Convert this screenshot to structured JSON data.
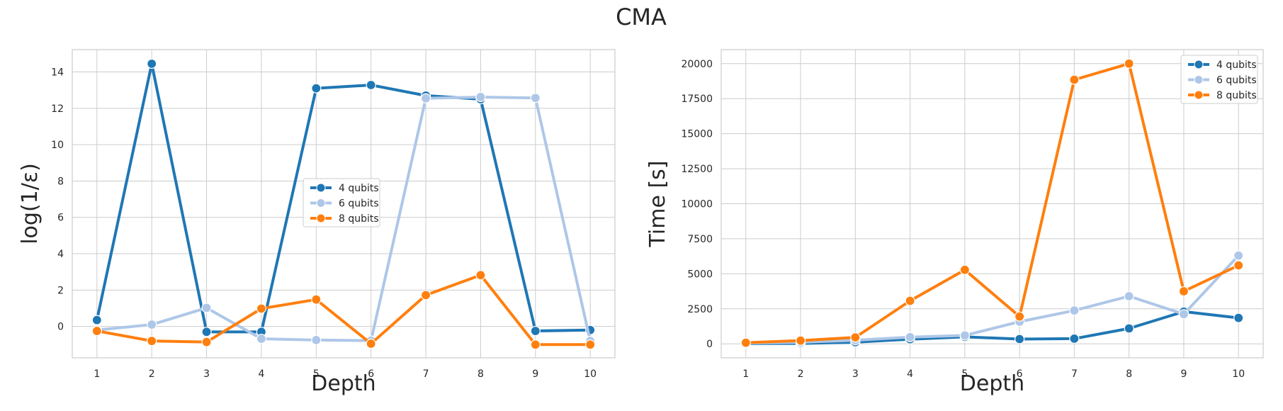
{
  "figure": {
    "suptitle": "CMA"
  },
  "chart_data": [
    {
      "type": "line",
      "xlabel": "Depth",
      "ylabel": "log(1/ε)",
      "x": [
        1,
        2,
        3,
        4,
        5,
        6,
        7,
        8,
        9,
        10
      ],
      "xlim": [
        0.55,
        10.45
      ],
      "ylim": [
        -1.73,
        15.23
      ],
      "yticks": [
        0,
        2,
        4,
        6,
        8,
        10,
        12,
        14
      ],
      "grid": true,
      "legend_position": "center",
      "series": [
        {
          "name": "4 qubits",
          "color": "#1f77b4",
          "values": [
            0.35,
            14.45,
            -0.3,
            -0.3,
            13.1,
            13.28,
            12.7,
            12.5,
            -0.25,
            -0.2
          ]
        },
        {
          "name": "6 qubits",
          "color": "#aec7e8",
          "values": [
            -0.2,
            0.1,
            1.02,
            -0.68,
            -0.75,
            -0.78,
            12.55,
            12.62,
            12.57,
            -0.8
          ]
        },
        {
          "name": "8 qubits",
          "color": "#ff7f0e",
          "values": [
            -0.25,
            -0.8,
            -0.86,
            0.98,
            1.48,
            -0.95,
            1.72,
            2.82,
            -1.0,
            -1.0
          ]
        }
      ]
    },
    {
      "type": "line",
      "xlabel": "Depth",
      "ylabel": "Time [s]",
      "x": [
        1,
        2,
        3,
        4,
        5,
        6,
        7,
        8,
        9,
        10
      ],
      "xlim": [
        0.55,
        10.45
      ],
      "ylim": [
        -1000,
        21000
      ],
      "yticks": [
        0,
        2500,
        5000,
        7500,
        10000,
        12500,
        15000,
        17500,
        20000
      ],
      "grid": true,
      "legend_position": "top-right",
      "series": [
        {
          "name": "4 qubits",
          "color": "#1f77b4",
          "values": [
            20,
            30,
            120,
            330,
            500,
            340,
            370,
            1100,
            2300,
            1850
          ]
        },
        {
          "name": "6 qubits",
          "color": "#aec7e8",
          "values": [
            50,
            110,
            260,
            480,
            600,
            1580,
            2380,
            3400,
            2120,
            6300
          ]
        },
        {
          "name": "8 qubits",
          "color": "#ff7f0e",
          "values": [
            80,
            230,
            460,
            3070,
            5280,
            1950,
            18850,
            20000,
            3750,
            5600
          ]
        }
      ]
    }
  ]
}
